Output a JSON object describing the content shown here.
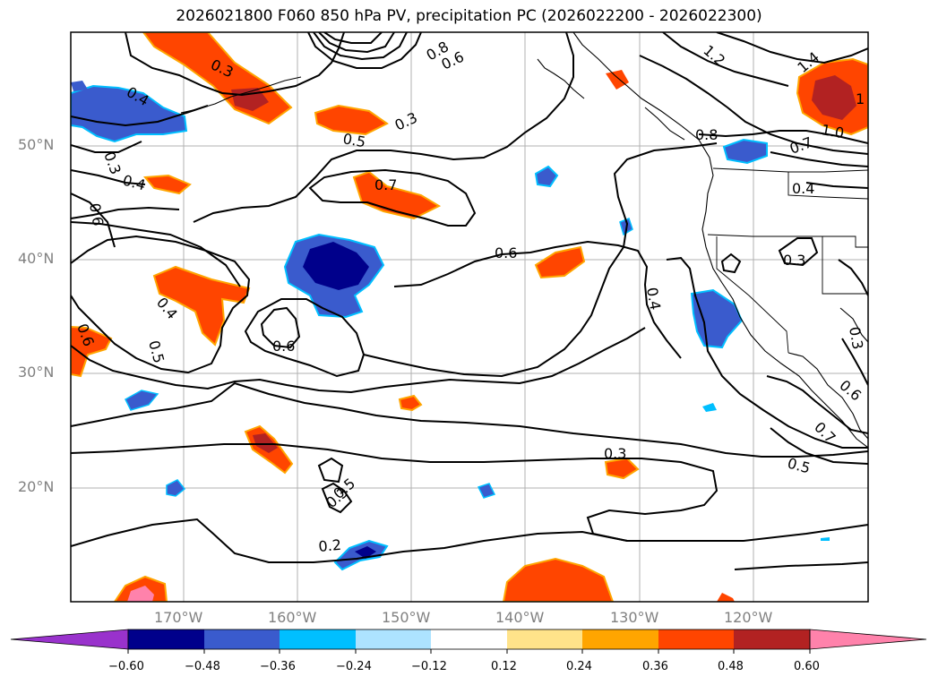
{
  "title": "2026021800 F060 850 hPa PV, precipitation PC (2026022200 - 2026022300)",
  "map": {
    "lat_labels": [
      "50°N",
      "40°N",
      "30°N",
      "20°N"
    ],
    "lon_labels": [
      "170°W",
      "160°W",
      "150°W",
      "140°W",
      "130°W",
      "120°W"
    ],
    "gridline_color": "#b0b0b0",
    "tick_label_color": "#808080"
  },
  "contour_labels": [
    "0.3",
    "0.4",
    "0.3",
    "0.5",
    "0.3",
    "0.4",
    "0.6",
    "0.7",
    "1.2",
    "0.8",
    "0.6",
    "0.8",
    "1.4",
    "1.0",
    "0.7",
    "0.4",
    "0.6",
    "0.4",
    "0.6",
    "0.4",
    "0.3",
    "0.5",
    "0.6",
    "0.3",
    "0.3",
    "0.6",
    "0.7",
    "0.5",
    "0.3",
    "0.5",
    "0.2",
    "1"
  ],
  "colorbar": {
    "ticks": [
      "−0.60",
      "−0.48",
      "−0.36",
      "−0.24",
      "−0.12",
      "0.12",
      "0.24",
      "0.36",
      "0.48",
      "0.60"
    ],
    "colors": [
      "#9932cc",
      "#00008b",
      "#3a5bcd",
      "#00bfff",
      "#ade3ff",
      "#ffffff",
      "#ffe38a",
      "#ffa500",
      "#ff4500",
      "#b22222",
      "#ff82ab"
    ]
  }
}
